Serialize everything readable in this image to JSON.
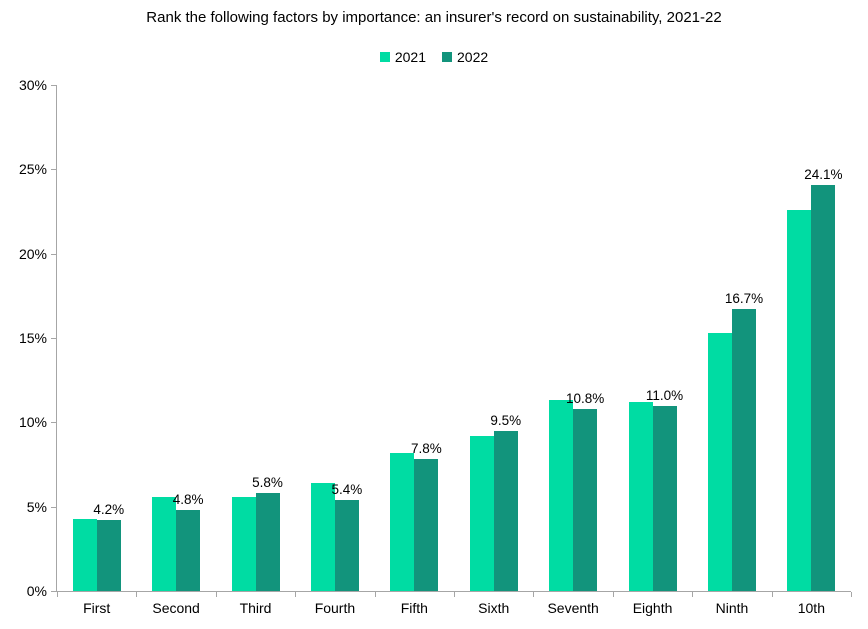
{
  "title": "Rank the following factors by importance: an insurer's record on sustainability, 2021-22",
  "legend": {
    "items": [
      {
        "label": "2021",
        "color": "#00dca3"
      },
      {
        "label": "2022",
        "color": "#12947c"
      }
    ]
  },
  "axes": {
    "axis_color": "#a6a6a6",
    "y_tick_labels_top_to_bottom": [
      "30%",
      "25%",
      "20%",
      "15%",
      "10%",
      "5%",
      "0%"
    ],
    "x_category_labels": [
      "First",
      "Second",
      "Third",
      "Fourth",
      "Fifth",
      "Sixth",
      "Seventh",
      "Eighth",
      "Ninth",
      "10th"
    ]
  },
  "chart_data": {
    "type": "bar",
    "title": "Rank the following factors by importance: an insurer's record on sustainability, 2021-22",
    "categories": [
      "First",
      "Second",
      "Third",
      "Fourth",
      "Fifth",
      "Sixth",
      "Seventh",
      "Eighth",
      "Ninth",
      "10th"
    ],
    "series": [
      {
        "name": "2021",
        "color": "#00dca3",
        "values": [
          4.3,
          5.6,
          5.6,
          6.4,
          8.2,
          9.2,
          11.3,
          11.2,
          15.3,
          22.6
        ],
        "data_labels_shown": false,
        "data_labels": []
      },
      {
        "name": "2022",
        "color": "#12947c",
        "values": [
          4.2,
          4.8,
          5.8,
          5.4,
          7.8,
          9.5,
          10.8,
          11.0,
          16.7,
          24.1
        ],
        "data_labels_shown": true,
        "data_labels": [
          "4.2%",
          "4.8%",
          "5.8%",
          "5.4%",
          "7.8%",
          "9.5%",
          "10.8%",
          "11.0%",
          "16.7%",
          "24.1%"
        ]
      }
    ],
    "xlabel": "",
    "ylabel": "",
    "ylim": [
      0,
      30
    ],
    "y_tick_step": 5,
    "grid": false,
    "legend_position": "top-center"
  }
}
